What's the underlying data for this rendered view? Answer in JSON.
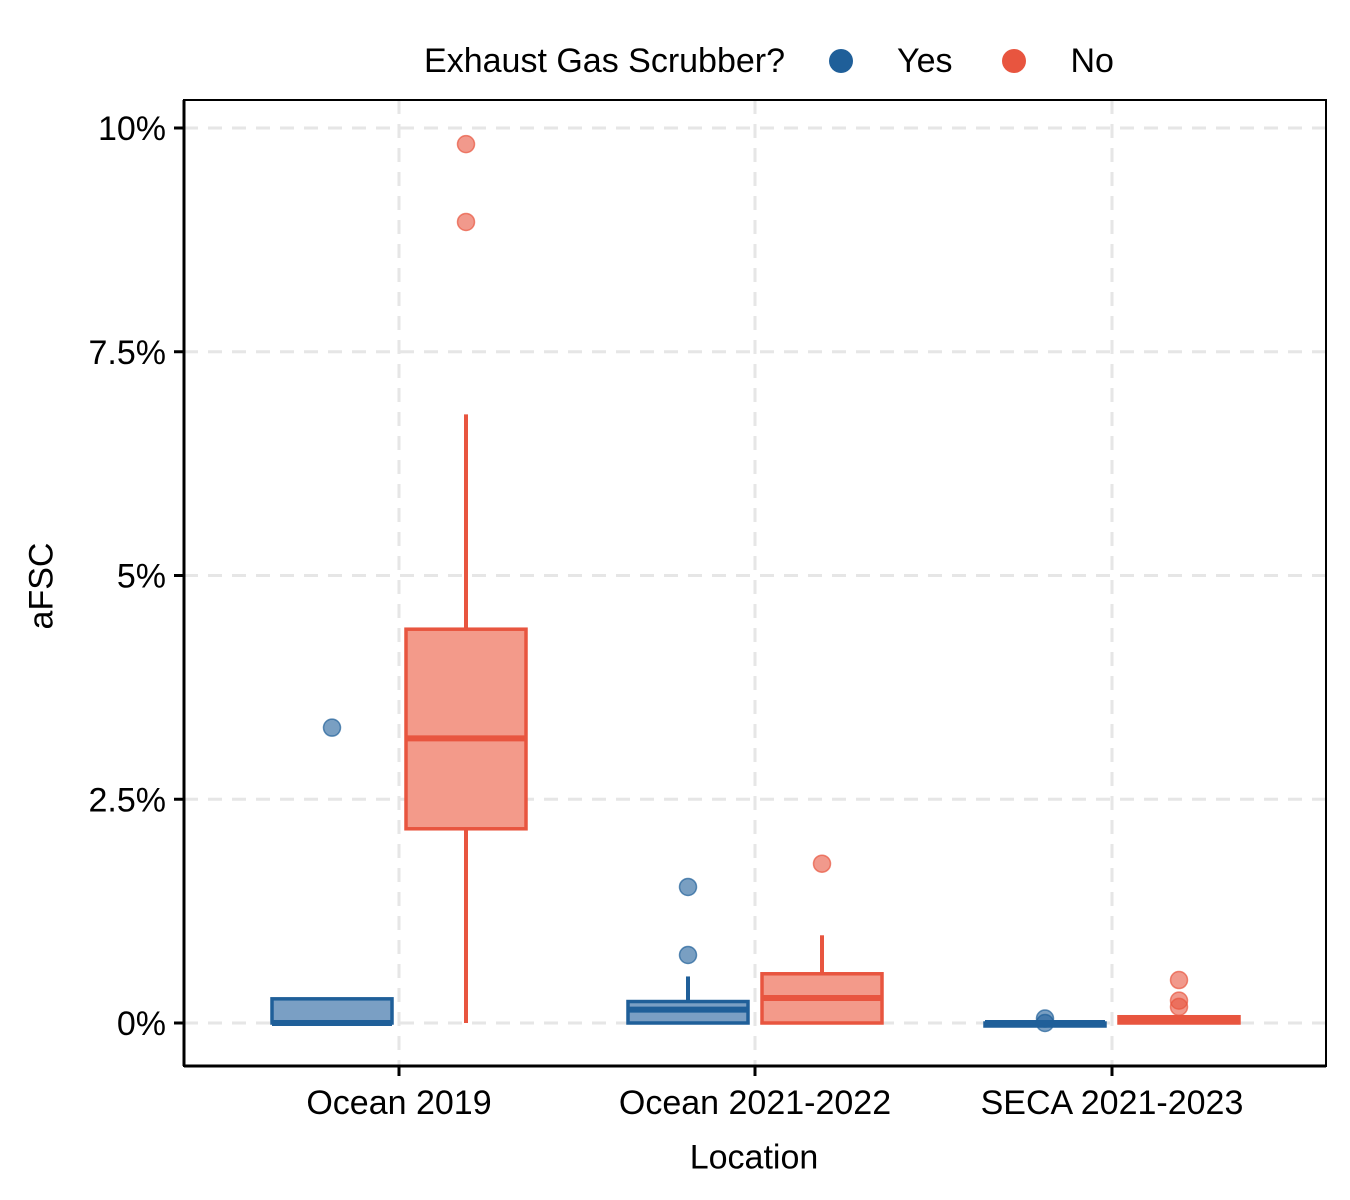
{
  "chart_data": {
    "type": "box",
    "title": "",
    "xlabel": "Location",
    "ylabel": "aFSC",
    "legend": {
      "title": "Exhaust Gas Scrubber?",
      "position": "top",
      "entries": [
        {
          "label": "Yes",
          "color": "#1f5f99"
        },
        {
          "label": "No",
          "color": "#e8553f"
        }
      ]
    },
    "categories": [
      "Ocean 2019",
      "Ocean 2021-2022",
      "SECA 2021-2023"
    ],
    "y_ticks": [
      0,
      2.5,
      5,
      7.5,
      10
    ],
    "y_tick_labels": [
      "0%",
      "2.5%",
      "5%",
      "7.5%",
      "10%"
    ],
    "ylim": [
      -0.5,
      10.3
    ],
    "grid": "dashed-major",
    "series": [
      {
        "name": "Yes",
        "color": "#1f5f99",
        "boxes": [
          {
            "category": "Ocean 2019",
            "min": 0.0,
            "q1": 0.0,
            "median": 0.0,
            "q3": 0.27,
            "max": 0.27,
            "outliers": [
              3.3
            ]
          },
          {
            "category": "Ocean 2021-2022",
            "min": 0.0,
            "q1": 0.0,
            "median": 0.15,
            "q3": 0.24,
            "max": 0.52,
            "outliers": [
              0.76,
              1.52
            ]
          },
          {
            "category": "SECA 2021-2023",
            "min": 0.0,
            "q1": 0.0,
            "median": 0.0,
            "q3": 0.0,
            "max": 0.0,
            "outliers": [
              0.0,
              0.05
            ]
          }
        ]
      },
      {
        "name": "No",
        "color": "#e8553f",
        "boxes": [
          {
            "category": "Ocean 2019",
            "min": 0.0,
            "q1": 2.17,
            "median": 3.18,
            "q3": 4.4,
            "max": 6.8,
            "outliers": [
              8.95,
              9.82
            ]
          },
          {
            "category": "Ocean 2021-2022",
            "min": 0.0,
            "q1": 0.0,
            "median": 0.28,
            "q3": 0.55,
            "max": 0.98,
            "outliers": [
              1.78
            ]
          },
          {
            "category": "SECA 2021-2023",
            "min": 0.0,
            "q1": 0.0,
            "median": 0.02,
            "q3": 0.07,
            "max": 0.07,
            "outliers": [
              0.18,
              0.25,
              0.48
            ]
          }
        ]
      }
    ]
  }
}
